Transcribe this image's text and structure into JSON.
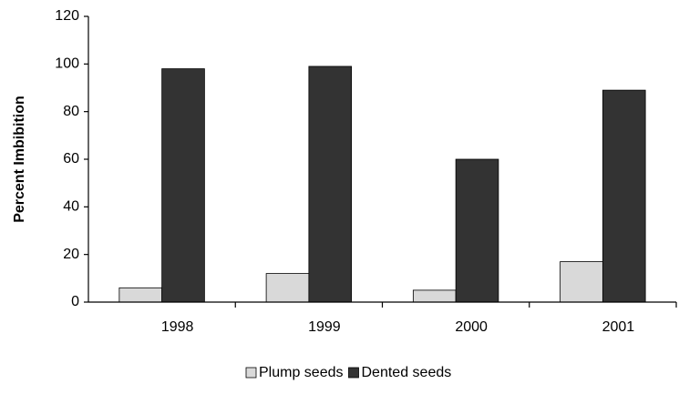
{
  "chart_data": {
    "type": "bar",
    "y_label": "Percent Imbibition",
    "categories": [
      "1998",
      "1999",
      "2000",
      "2001"
    ],
    "series": [
      {
        "name": "Plump seeds",
        "color": "#d9d9d9",
        "values": [
          6,
          12,
          5,
          17
        ]
      },
      {
        "name": "Dented seeds",
        "color": "#333333",
        "values": [
          98,
          99,
          60,
          89
        ]
      }
    ],
    "ylim": [
      0,
      120
    ],
    "yticks": [
      0,
      20,
      40,
      60,
      80,
      100,
      120
    ],
    "grid": false,
    "legend": "bottom"
  }
}
